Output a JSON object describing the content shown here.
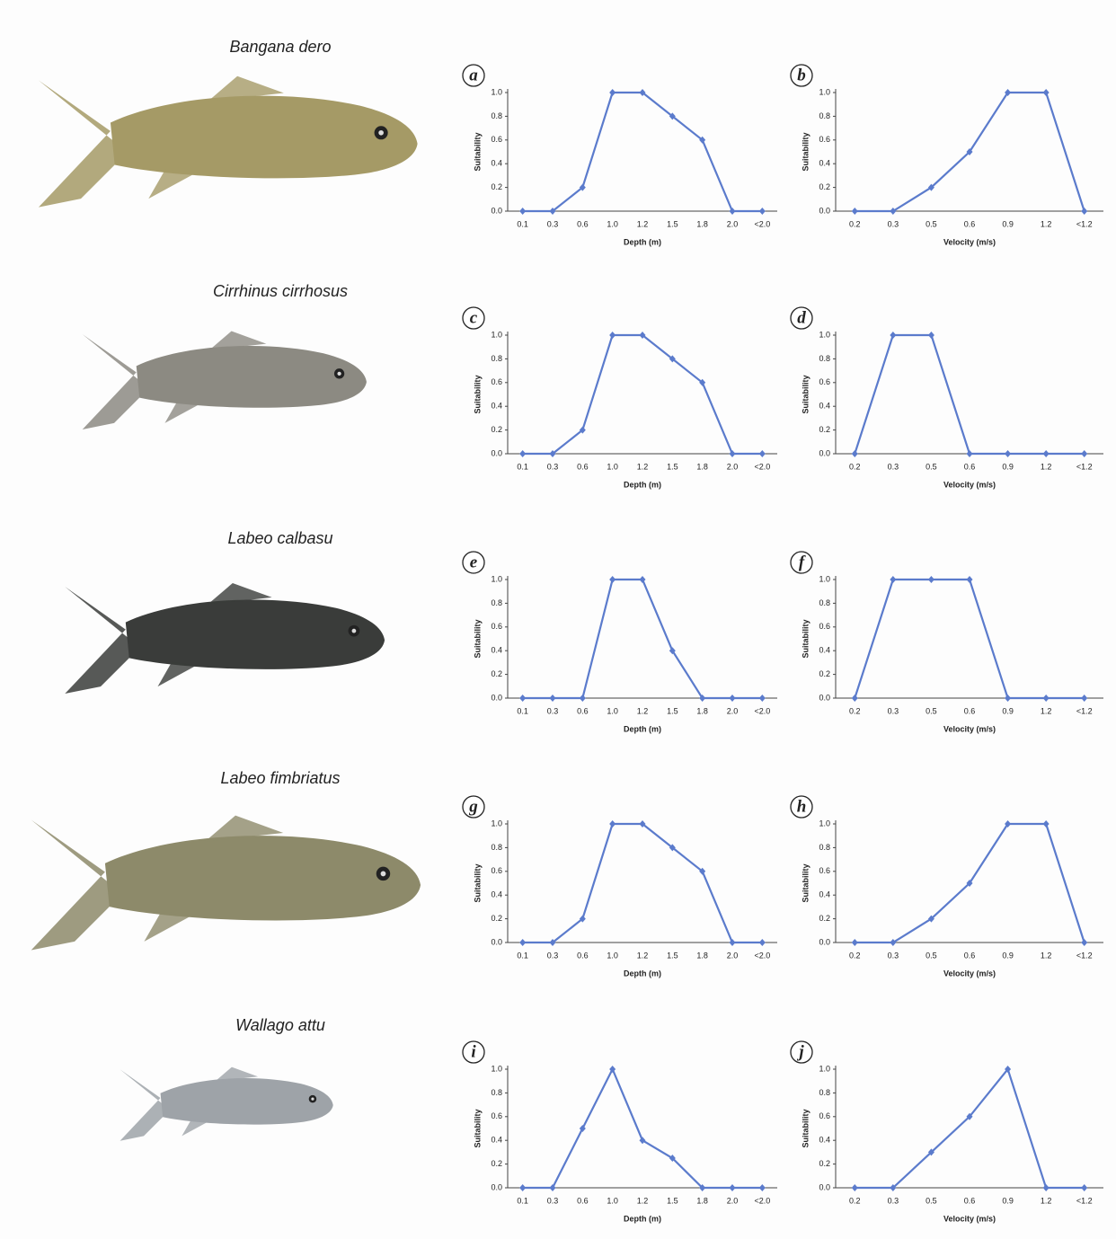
{
  "species": [
    "Bangana dero",
    "Cirrhinus cirrhosus",
    "Labeo calbasu",
    "Labeo fimbriatus",
    "Wallago attu"
  ],
  "chart_data": [
    {
      "type": "line",
      "panel": "a",
      "ylabel": "Suitability",
      "xlabel": "Depth (m)",
      "categories": [
        "0.1",
        "0.3",
        "0.6",
        "1.0",
        "1.2",
        "1.5",
        "1.8",
        "2.0",
        "<2.0"
      ],
      "values": [
        0,
        0,
        0.2,
        1,
        1,
        0.8,
        0.6,
        0,
        0
      ],
      "color": "#5b7bcc",
      "ylim": [
        0,
        1
      ],
      "yticks": [
        {
          "value": 0,
          "label": "0.0"
        },
        0.2,
        0.4,
        0.6,
        0.8,
        {
          "value": 1,
          "label": "1.0"
        }
      ]
    },
    {
      "type": "line",
      "panel": "b",
      "ylabel": "Suitability",
      "xlabel": "Velocity (m/s)",
      "categories": [
        "0.2",
        "0.3",
        "0.5",
        "0.6",
        "0.9",
        "1.2",
        "<1.2"
      ],
      "values": [
        0,
        0,
        0.2,
        0.5,
        1,
        1,
        0
      ],
      "color": "#5b7bcc",
      "ylim": [
        0,
        1
      ],
      "yticks": [
        {
          "value": 0,
          "label": "0.0"
        },
        0.2,
        0.4,
        0.6,
        0.8,
        {
          "value": 1,
          "label": "1.0"
        }
      ]
    },
    {
      "type": "line",
      "panel": "c",
      "ylabel": "Suitability",
      "xlabel": "Depth (m)",
      "categories": [
        "0.1",
        "0.3",
        "0.6",
        "1.0",
        "1.2",
        "1.5",
        "1.8",
        "2.0",
        "<2.0"
      ],
      "values": [
        0,
        0,
        0.2,
        1,
        1,
        0.8,
        0.6,
        0,
        0
      ],
      "color": "#5b7bcc",
      "ylim": [
        0,
        1
      ],
      "yticks": [
        {
          "value": 0,
          "label": "0.0"
        },
        0.2,
        0.4,
        0.6,
        0.8,
        {
          "value": 1,
          "label": "1.0"
        }
      ]
    },
    {
      "type": "line",
      "panel": "d",
      "ylabel": "Suitability",
      "xlabel": "Velocity (m/s)",
      "categories": [
        "0.2",
        "0.3",
        "0.5",
        "0.6",
        "0.9",
        "1.2",
        "<1.2"
      ],
      "values": [
        0,
        1,
        1,
        0,
        0,
        0,
        0
      ],
      "color": "#5b7bcc",
      "ylim": [
        0,
        1
      ],
      "yticks": [
        {
          "value": 0,
          "label": "0.0"
        },
        0.2,
        0.4,
        0.6,
        0.8,
        {
          "value": 1,
          "label": "1.0"
        }
      ]
    },
    {
      "type": "line",
      "panel": "e",
      "ylabel": "Suitability",
      "xlabel": "Depth (m)",
      "categories": [
        "0.1",
        "0.3",
        "0.6",
        "1.0",
        "1.2",
        "1.5",
        "1.8",
        "2.0",
        "<2.0"
      ],
      "values": [
        0,
        0,
        0,
        1,
        1,
        0.4,
        0,
        0,
        0
      ],
      "color": "#5b7bcc",
      "ylim": [
        0,
        1
      ],
      "yticks": [
        {
          "value": 0,
          "label": "0.0"
        },
        0.2,
        0.4,
        0.6,
        0.8,
        {
          "value": 1,
          "label": "1.0"
        }
      ]
    },
    {
      "type": "line",
      "panel": "f",
      "ylabel": "Suitability",
      "xlabel": "Velocity (m/s)",
      "categories": [
        "0.2",
        "0.3",
        "0.5",
        "0.6",
        "0.9",
        "1.2",
        "<1.2"
      ],
      "values": [
        0,
        1,
        1,
        1,
        0,
        0,
        0
      ],
      "color": "#5b7bcc",
      "ylim": [
        0,
        1
      ],
      "yticks": [
        {
          "value": 0,
          "label": "0.0"
        },
        0.2,
        0.4,
        0.6,
        0.8,
        {
          "value": 1,
          "label": "1.0"
        }
      ]
    },
    {
      "type": "line",
      "panel": "g",
      "ylabel": "Suitability",
      "xlabel": "Depth (m)",
      "categories": [
        "0.1",
        "0.3",
        "0.6",
        "1.0",
        "1.2",
        "1.5",
        "1.8",
        "2.0",
        "<2.0"
      ],
      "values": [
        0,
        0,
        0.2,
        1,
        1,
        0.8,
        0.6,
        0,
        0
      ],
      "color": "#5b7bcc",
      "ylim": [
        0,
        1
      ],
      "yticks": [
        {
          "value": 0,
          "label": "0.0"
        },
        0.2,
        0.4,
        0.6,
        0.8,
        {
          "value": 1,
          "label": "1.0"
        }
      ]
    },
    {
      "type": "line",
      "panel": "h",
      "ylabel": "Suitability",
      "xlabel": "Velocity (m/s)",
      "categories": [
        "0.2",
        "0.3",
        "0.5",
        "0.6",
        "0.9",
        "1.2",
        "<1.2"
      ],
      "values": [
        0,
        0,
        0.2,
        0.5,
        1,
        1,
        0
      ],
      "color": "#5b7bcc",
      "ylim": [
        0,
        1
      ],
      "yticks": [
        {
          "value": 0,
          "label": "0.0"
        },
        0.2,
        0.4,
        0.6,
        0.8,
        {
          "value": 1,
          "label": "1.0"
        }
      ]
    },
    {
      "type": "line",
      "panel": "i",
      "ylabel": "Suitability",
      "xlabel": "Depth (m)",
      "categories": [
        "0.1",
        "0.3",
        "0.6",
        "1.0",
        "1.2",
        "1.5",
        "1.8",
        "2.0",
        "<2.0"
      ],
      "values": [
        0,
        0,
        0.5,
        1,
        0.4,
        0.25,
        0,
        0,
        0
      ],
      "color": "#5b7bcc",
      "ylim": [
        0,
        1
      ],
      "yticks": [
        {
          "value": 0,
          "label": "0.0"
        },
        0.2,
        0.4,
        0.6,
        0.8,
        {
          "value": 1,
          "label": "1.0"
        }
      ]
    },
    {
      "type": "line",
      "panel": "j",
      "ylabel": "Suitability",
      "xlabel": "Velocity (m/s)",
      "categories": [
        "0.2",
        "0.3",
        "0.5",
        "0.6",
        "0.9",
        "1.2",
        "<1.2"
      ],
      "values": [
        0,
        0,
        0.3,
        0.6,
        1,
        0,
        0
      ],
      "color": "#5b7bcc",
      "ylim": [
        0,
        1
      ],
      "yticks": [
        {
          "value": 0,
          "label": "0.0"
        },
        0.2,
        0.4,
        0.6,
        0.8,
        {
          "value": 1,
          "label": "1.0"
        }
      ]
    }
  ]
}
